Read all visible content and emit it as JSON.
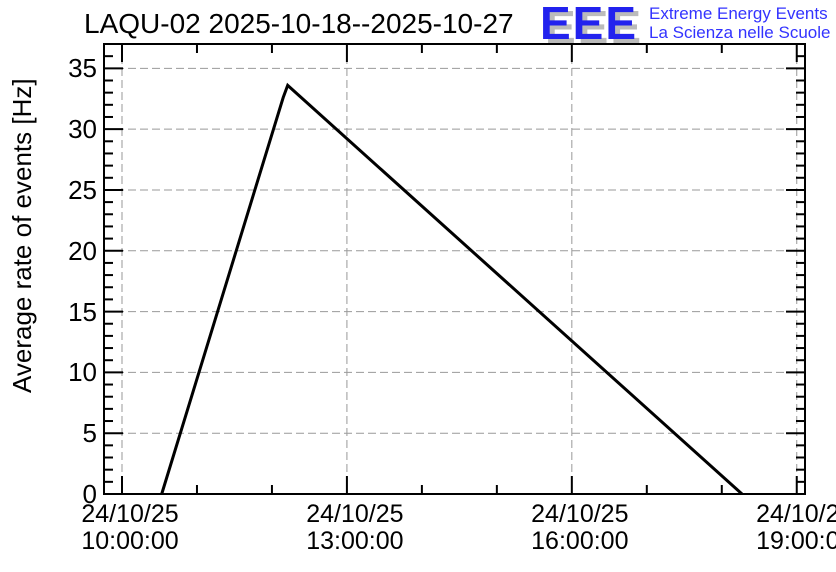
{
  "logo": {
    "acronym": "EEE",
    "tagline_line1": "Extreme Energy Events",
    "tagline_line2": "La Scienza nelle Scuole",
    "blue": "#2222ee",
    "shadow_gray": "#bbbbbb"
  },
  "chart_data": {
    "type": "line",
    "title": "LAQU-02 2025-10-18--2025-10-27",
    "xlabel": "",
    "ylabel": "Average rate of events [Hz]",
    "line_color": "#000000",
    "grid": {
      "show": true,
      "color": "#999999",
      "style": "dashed"
    },
    "x_axis": {
      "unit": "date/time",
      "range_hours": [
        9.76,
        19.11
      ],
      "minor_step_hours": 1,
      "major_ticks": [
        {
          "hour": 10,
          "date": "24/10/25",
          "time": "10:00:00"
        },
        {
          "hour": 13,
          "date": "24/10/25",
          "time": "13:00:00"
        },
        {
          "hour": 16,
          "date": "24/10/25",
          "time": "16:00:00"
        },
        {
          "hour": 19,
          "date": "24/10/25",
          "time": "19:00:00"
        }
      ]
    },
    "y_axis": {
      "range": [
        0,
        37
      ],
      "minor_step": 1,
      "major_ticks": [
        0,
        5,
        10,
        15,
        20,
        25,
        30,
        35
      ]
    },
    "series": [
      {
        "name": "average-rate",
        "color": "#000000",
        "points_hour_hz": [
          [
            10.53,
            0
          ],
          [
            12.15,
            32.6
          ],
          [
            12.21,
            33.6
          ],
          [
            18.27,
            0
          ]
        ]
      }
    ]
  }
}
